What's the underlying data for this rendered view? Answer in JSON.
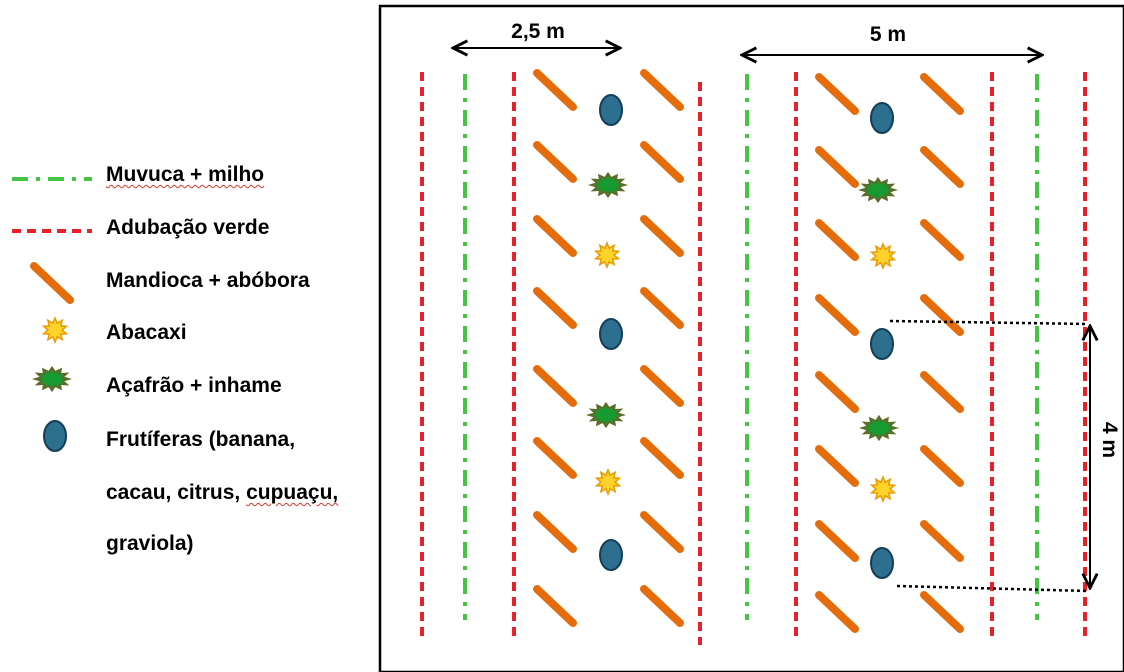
{
  "legend": {
    "muvuca": "Muvuca + milho",
    "adubacao": "Adubação verde",
    "mandioca": "Mandioca + abóbora",
    "abacaxi": "Abacaxi",
    "acafrao": "Açafrão + inhame",
    "frutiferas_line1": "Frutíferas (banana,",
    "frutiferas_line2a": "cacau, citrus, ",
    "frutiferas_line2b": "cupuaçu,",
    "frutiferas_line3": "graviola)"
  },
  "dimensions": {
    "narrow_spacing": "2,5 m",
    "wide_spacing": "5 m",
    "row_spacing": "4 m"
  },
  "colors": {
    "muvuca": "#44c544",
    "adubacao": "#e8202a",
    "mandioca": "#e46c0a",
    "abacaxi_fill": "#ffd42a",
    "abacaxi_stroke": "#e89a00",
    "acafrao_fill": "#169b32",
    "acafrao_stroke": "#5c6b28",
    "frutifera_fill": "#2d6f8e",
    "frutifera_stroke": "#123f57"
  },
  "icons": {
    "muvuca": "dash-dot-line-icon",
    "adubacao": "dashed-line-icon",
    "mandioca": "diagonal-bar-icon",
    "abacaxi": "yellow-star-icon",
    "acafrao": "green-star-icon",
    "frutiferas": "blue-ellipse-icon"
  }
}
